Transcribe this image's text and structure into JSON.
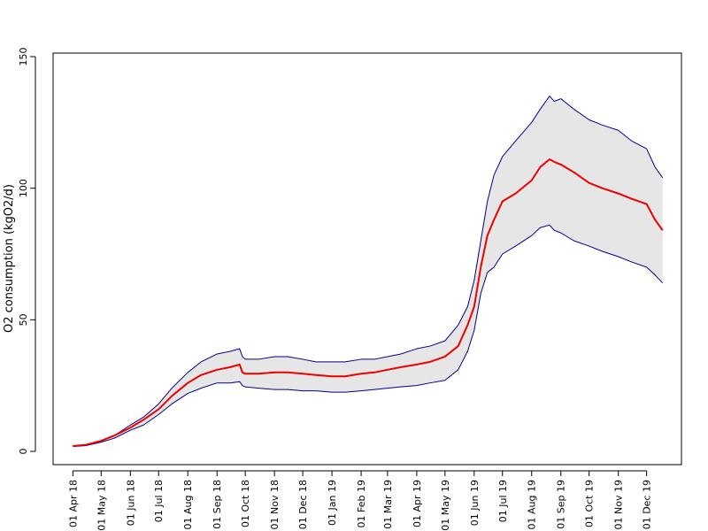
{
  "chart_data": {
    "type": "line",
    "title": "",
    "xlabel": "",
    "ylabel": "O2 consumption (kgO2/d)",
    "ylim": [
      0,
      150
    ],
    "yticks": [
      0,
      50,
      100,
      150
    ],
    "xticks": [
      {
        "date": "2018-04-01",
        "label": "01 Apr 18"
      },
      {
        "date": "2018-05-01",
        "label": "01 May 18"
      },
      {
        "date": "2018-06-01",
        "label": "01 Jun 18"
      },
      {
        "date": "2018-07-01",
        "label": "01 Jul 18"
      },
      {
        "date": "2018-08-01",
        "label": "01 Aug 18"
      },
      {
        "date": "2018-09-01",
        "label": "01 Sep 18"
      },
      {
        "date": "2018-10-01",
        "label": "01 Oct 18"
      },
      {
        "date": "2018-11-01",
        "label": "01 Nov 18"
      },
      {
        "date": "2018-12-01",
        "label": "01 Dec 18"
      },
      {
        "date": "2019-01-01",
        "label": "01 Jan 19"
      },
      {
        "date": "2019-02-01",
        "label": "01 Feb 19"
      },
      {
        "date": "2019-03-01",
        "label": "01 Mar 19"
      },
      {
        "date": "2019-04-01",
        "label": "01 Apr 19"
      },
      {
        "date": "2019-05-01",
        "label": "01 May 19"
      },
      {
        "date": "2019-06-01",
        "label": "01 Jun 19"
      },
      {
        "date": "2019-07-01",
        "label": "01 Jul 19"
      },
      {
        "date": "2019-08-01",
        "label": "01 Aug 19"
      },
      {
        "date": "2019-09-01",
        "label": "01 Sep 19"
      },
      {
        "date": "2019-10-01",
        "label": "01 Oct 19"
      },
      {
        "date": "2019-11-01",
        "label": "01 Nov 19"
      },
      {
        "date": "2019-12-01",
        "label": "01 Dec 19"
      }
    ],
    "xlim": [
      "2018-03-11",
      "2020-01-07"
    ],
    "colors": {
      "mean": "#ee0000",
      "bounds": "#00008b",
      "band": "#e6e6e6"
    },
    "x": [
      "2018-04-01",
      "2018-04-15",
      "2018-05-01",
      "2018-05-15",
      "2018-06-01",
      "2018-06-15",
      "2018-07-01",
      "2018-07-15",
      "2018-08-01",
      "2018-08-15",
      "2018-09-01",
      "2018-09-15",
      "2018-09-25",
      "2018-09-28",
      "2018-10-01",
      "2018-10-15",
      "2018-11-01",
      "2018-11-15",
      "2018-12-01",
      "2018-12-15",
      "2019-01-01",
      "2019-01-15",
      "2019-02-01",
      "2019-02-15",
      "2019-03-01",
      "2019-03-15",
      "2019-04-01",
      "2019-04-15",
      "2019-05-01",
      "2019-05-15",
      "2019-05-25",
      "2019-06-01",
      "2019-06-08",
      "2019-06-15",
      "2019-06-22",
      "2019-07-01",
      "2019-07-15",
      "2019-08-01",
      "2019-08-10",
      "2019-08-20",
      "2019-08-25",
      "2019-09-01",
      "2019-09-15",
      "2019-10-01",
      "2019-10-15",
      "2019-11-01",
      "2019-11-15",
      "2019-12-01",
      "2019-12-10",
      "2019-12-18"
    ],
    "series": [
      {
        "role": "upper",
        "values": [
          2,
          2.5,
          4,
          6,
          10,
          13,
          18,
          24,
          30,
          34,
          37,
          38,
          39,
          36,
          35,
          35,
          36,
          36,
          35,
          34,
          34,
          34,
          35,
          35,
          36,
          37,
          39,
          40,
          42,
          48,
          55,
          65,
          80,
          95,
          105,
          112,
          118,
          125,
          130,
          135,
          133,
          134,
          130,
          126,
          124,
          122,
          118,
          115,
          108,
          104
        ]
      },
      {
        "role": "mean",
        "values": [
          2,
          2.5,
          4,
          6,
          9,
          12,
          16,
          21,
          26,
          29,
          31,
          32,
          33,
          30,
          29.5,
          29.5,
          30,
          30,
          29.5,
          29,
          28.5,
          28.5,
          29.5,
          30,
          31,
          32,
          33,
          34,
          36,
          40,
          48,
          55,
          70,
          82,
          88,
          95,
          98,
          103,
          108,
          111,
          110,
          109,
          106,
          102,
          100,
          98,
          96,
          94,
          88,
          84
        ]
      },
      {
        "role": "lower",
        "values": [
          1.8,
          2.2,
          3.5,
          5,
          8,
          10,
          14,
          18,
          22,
          24,
          26,
          26,
          26.5,
          25,
          24.5,
          24,
          23.5,
          23.5,
          23,
          23,
          22.5,
          22.5,
          23,
          23.5,
          24,
          24.5,
          25,
          26,
          27,
          31,
          38,
          46,
          60,
          68,
          70,
          75,
          78,
          82,
          85,
          86,
          84,
          83,
          80,
          78,
          76,
          74,
          72,
          70,
          67,
          64
        ]
      }
    ]
  }
}
